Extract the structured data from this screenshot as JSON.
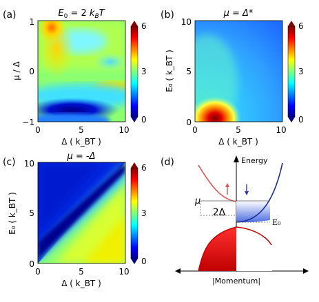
{
  "panels": {
    "a": {
      "letter": "(a)",
      "title": "E₀ = 2 k_BT",
      "title_parts": {
        "lead": "E",
        "sub": "0",
        "mid": " = 2 ",
        "k": "k",
        "ksub": "B",
        "T": "T"
      },
      "xlabel": "Δ ( k_BT )",
      "ylabel": "μ / Δ",
      "xticks": [
        "0",
        "5",
        "10"
      ],
      "yticks": [
        "1",
        "0",
        "−1"
      ],
      "cbar_ticks": [
        "6",
        "3",
        "0"
      ]
    },
    "b": {
      "letter": "(b)",
      "title": "μ = Δ*",
      "ylabel": "E₀ ( k_BT )",
      "xlabel": "Δ ( k_BT )",
      "xticks": [
        "0",
        "5",
        "10"
      ],
      "yticks": [
        "10",
        "5",
        "0"
      ],
      "cbar_ticks": [
        "6",
        "3",
        "0"
      ]
    },
    "c": {
      "letter": "(c)",
      "title": "μ = -Δ",
      "ylabel": "E₀ ( k_BT )",
      "xlabel": "Δ ( k_BT )",
      "xticks": [
        "0",
        "5",
        "10"
      ],
      "yticks": [
        "10",
        "5",
        "0"
      ],
      "cbar_ticks": [
        "6",
        "3",
        "0"
      ]
    },
    "d": {
      "letter": "(d)",
      "energy_label": "Energy",
      "momentum_label": "|Momentum|",
      "mu_label": "μ",
      "gap_label": "2Δ",
      "e0_label": "E₀"
    }
  },
  "chart_data": [
    {
      "type": "heatmap",
      "panel": "a",
      "xlim": [
        0,
        10
      ],
      "ylim": [
        -1,
        1
      ],
      "zlim": [
        0,
        6
      ],
      "colormap": "jet"
    },
    {
      "type": "heatmap",
      "panel": "b",
      "xlim": [
        0,
        10
      ],
      "ylim": [
        0,
        10
      ],
      "zlim": [
        0,
        6
      ],
      "colormap": "jet"
    },
    {
      "type": "heatmap",
      "panel": "c",
      "xlim": [
        0,
        10
      ],
      "ylim": [
        0,
        10
      ],
      "zlim": [
        0,
        6
      ],
      "colormap": "jet"
    }
  ],
  "colors": {
    "spin_up": "#e05050",
    "spin_down": "#1a2a9a",
    "fill_red": "#d01010",
    "fill_blue": "#5a78d8"
  }
}
